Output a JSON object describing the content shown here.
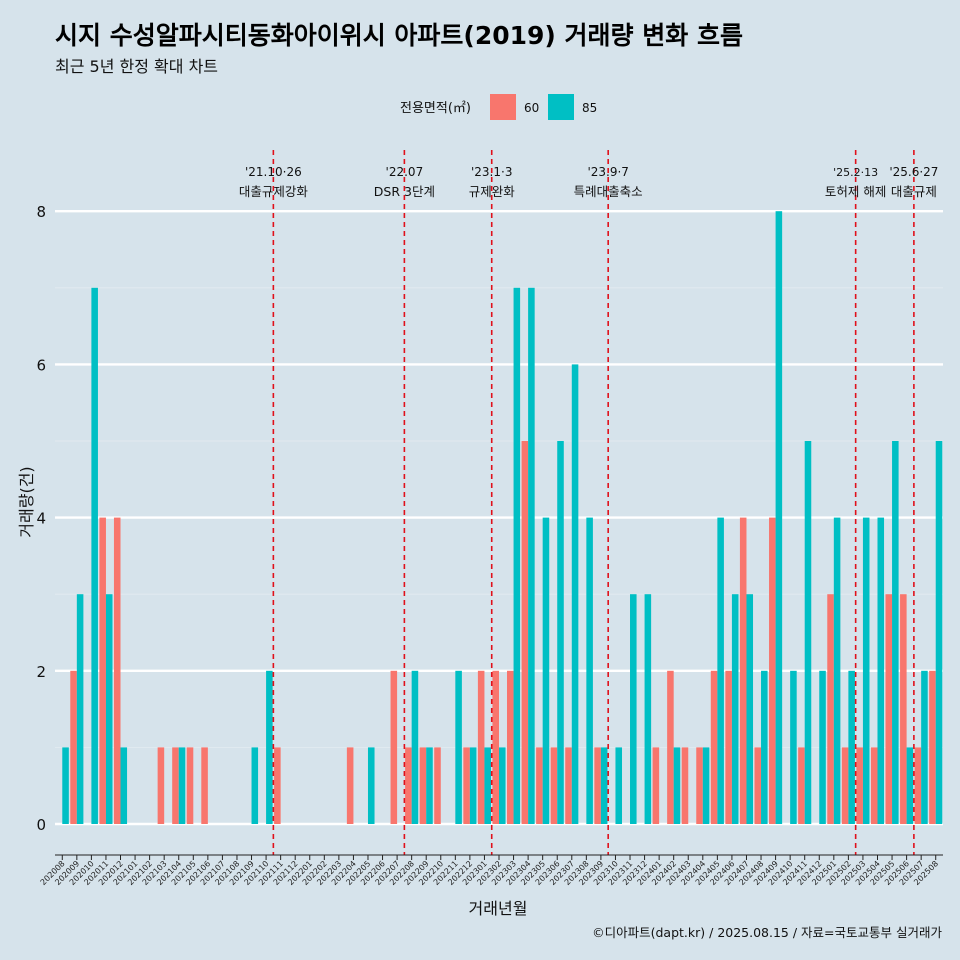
{
  "chart_data": {
    "type": "bar",
    "title": "시지 수성알파시티동화아이위시 아파트(2019) 거래량 변화 흐름",
    "subtitle": "최근 5년 한정 확대 차트",
    "xlabel": "거래년월",
    "ylabel": "거래량(건)",
    "legend_title": "전용면적(㎡)",
    "legend_position": "top",
    "ylim": [
      0,
      8.5
    ],
    "y_ticks": [
      0,
      2,
      4,
      6,
      8
    ],
    "categories": [
      "202008",
      "202009",
      "202010",
      "202011",
      "202012",
      "202101",
      "202102",
      "202103",
      "202104",
      "202105",
      "202106",
      "202107",
      "202108",
      "202109",
      "202110",
      "202111",
      "202112",
      "202201",
      "202202",
      "202203",
      "202204",
      "202205",
      "202206",
      "202207",
      "202208",
      "202209",
      "202210",
      "202211",
      "202212",
      "202301",
      "202302",
      "202303",
      "202304",
      "202305",
      "202306",
      "202307",
      "202308",
      "202309",
      "202310",
      "202311",
      "202312",
      "202401",
      "202402",
      "202403",
      "202404",
      "202405",
      "202406",
      "202407",
      "202408",
      "202409",
      "202410",
      "202411",
      "202412",
      "202501",
      "202502",
      "202503",
      "202504",
      "202505",
      "202506",
      "202507",
      "202508"
    ],
    "series": [
      {
        "name": "60",
        "color": "#f8766d",
        "values": [
          0,
          2,
          0,
          4,
          4,
          0,
          0,
          1,
          1,
          1,
          1,
          0,
          0,
          0,
          0,
          1,
          0,
          0,
          0,
          0,
          1,
          0,
          0,
          2,
          1,
          1,
          1,
          0,
          1,
          2,
          2,
          2,
          5,
          1,
          1,
          1,
          0,
          1,
          0,
          0,
          0,
          1,
          2,
          1,
          1,
          2,
          2,
          4,
          1,
          4,
          0,
          1,
          0,
          3,
          1,
          1,
          1,
          3,
          3,
          1,
          2
        ]
      },
      {
        "name": "85",
        "color": "#00bfc4",
        "values": [
          1,
          3,
          7,
          3,
          1,
          0,
          0,
          0,
          1,
          0,
          0,
          0,
          0,
          1,
          2,
          0,
          0,
          0,
          0,
          0,
          0,
          1,
          0,
          0,
          2,
          1,
          0,
          2,
          1,
          1,
          1,
          7,
          7,
          4,
          5,
          6,
          4,
          1,
          1,
          3,
          3,
          0,
          1,
          0,
          1,
          4,
          3,
          3,
          2,
          8,
          2,
          5,
          2,
          4,
          2,
          4,
          4,
          5,
          1,
          2,
          5
        ]
      }
    ],
    "events": [
      {
        "after": "202110",
        "date": "'21.10·26",
        "text": "대출규제강화"
      },
      {
        "after": "202207",
        "date": "'22.07",
        "text": "DSR 3단계"
      },
      {
        "after": "202301",
        "date": "'23.1·3",
        "text": "규제완화"
      },
      {
        "after": "202309",
        "date": "'23.9·7",
        "text": "특례대출축소"
      },
      {
        "after": "202502",
        "date": "'25.2·13",
        "text": "토허제 해제"
      },
      {
        "after": "202506",
        "date": "'25.6·27",
        "text": "대출규제"
      }
    ],
    "grid": true
  },
  "caption": "©디아파트(dapt.kr) / 2025.08.15 / 자료=국토교통부 실거래가"
}
